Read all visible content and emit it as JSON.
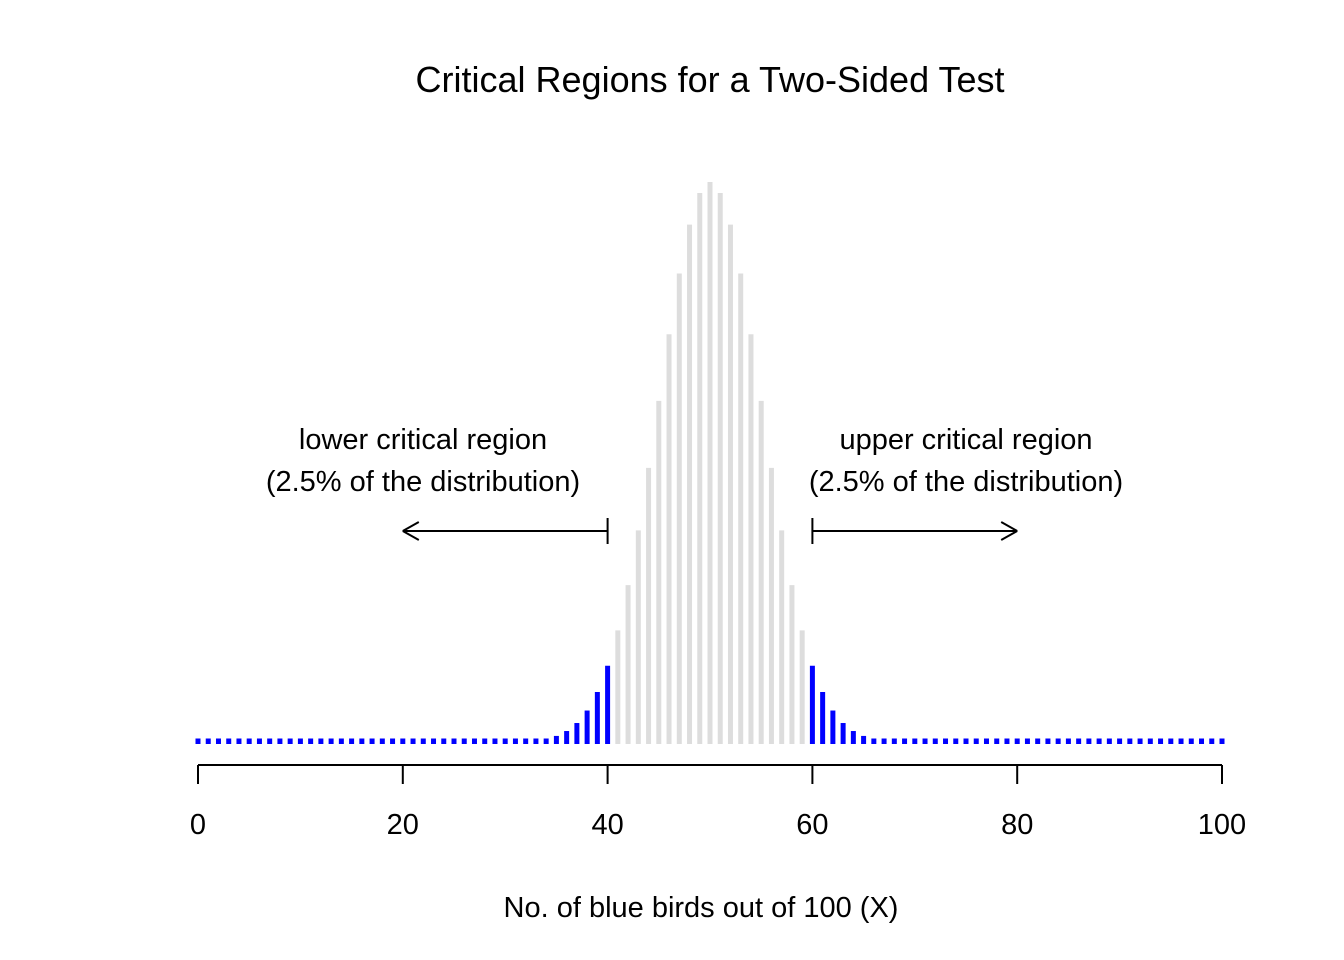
{
  "chart_data": {
    "type": "bar",
    "title": "Critical Regions for a Two-Sided Test",
    "xlabel": "No. of blue birds out of 100 (X)",
    "ylabel": "",
    "xlim": [
      0,
      100
    ],
    "x_ticks": [
      0,
      20,
      40,
      60,
      80,
      100
    ],
    "x_tick_labels": [
      "0",
      "20",
      "40",
      "60",
      "80",
      "100"
    ],
    "distribution": {
      "name": "binomial",
      "n": 100,
      "p": 0.5
    },
    "critical_bounds": {
      "lower_max": 40,
      "upper_min": 60
    },
    "colors": {
      "critical": "#0000ff",
      "non_critical": "#dddddd",
      "axis": "#000000"
    },
    "grid": false,
    "legend": "none",
    "annotations": {
      "lower": {
        "line1": "lower critical region",
        "line2": "(2.5% of the distribution)",
        "arrow_from": 40,
        "arrow_to": 20
      },
      "upper": {
        "line1": "upper critical region",
        "line2": "(2.5% of the distribution)",
        "arrow_from": 60,
        "arrow_to": 80
      }
    }
  }
}
